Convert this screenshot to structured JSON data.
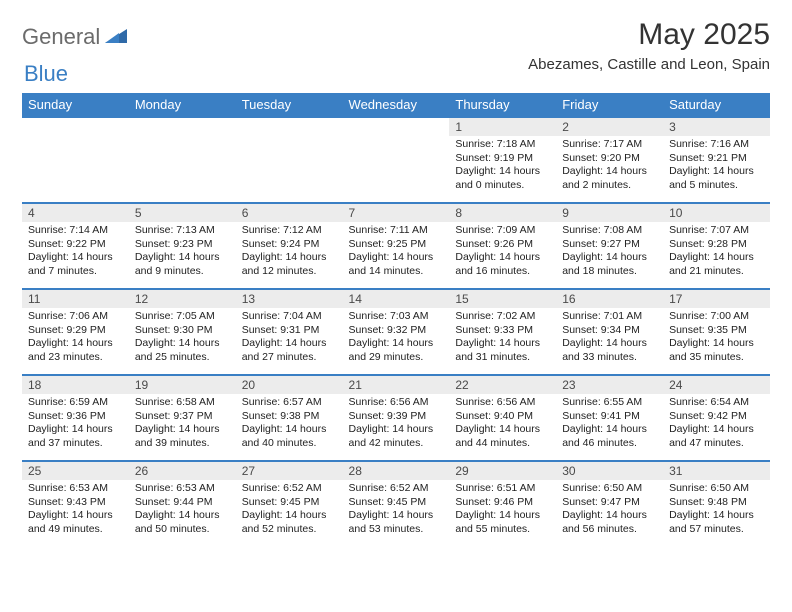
{
  "brand": {
    "part1": "General",
    "part2": "Blue"
  },
  "title": "May 2025",
  "location": "Abezames, Castille and Leon, Spain",
  "day_headers": [
    "Sunday",
    "Monday",
    "Tuesday",
    "Wednesday",
    "Thursday",
    "Friday",
    "Saturday"
  ],
  "colors": {
    "header_bg": "#3a7fc4",
    "header_text": "#ffffff",
    "daynum_bg": "#ececec",
    "border": "#3a7fc4",
    "logo_gray": "#6b6b6b",
    "logo_blue": "#3a7fc4"
  },
  "weeks": [
    [
      null,
      null,
      null,
      null,
      {
        "n": "1",
        "sr": "Sunrise: 7:18 AM",
        "ss": "Sunset: 9:19 PM",
        "dl1": "Daylight: 14 hours",
        "dl2": "and 0 minutes."
      },
      {
        "n": "2",
        "sr": "Sunrise: 7:17 AM",
        "ss": "Sunset: 9:20 PM",
        "dl1": "Daylight: 14 hours",
        "dl2": "and 2 minutes."
      },
      {
        "n": "3",
        "sr": "Sunrise: 7:16 AM",
        "ss": "Sunset: 9:21 PM",
        "dl1": "Daylight: 14 hours",
        "dl2": "and 5 minutes."
      }
    ],
    [
      {
        "n": "4",
        "sr": "Sunrise: 7:14 AM",
        "ss": "Sunset: 9:22 PM",
        "dl1": "Daylight: 14 hours",
        "dl2": "and 7 minutes."
      },
      {
        "n": "5",
        "sr": "Sunrise: 7:13 AM",
        "ss": "Sunset: 9:23 PM",
        "dl1": "Daylight: 14 hours",
        "dl2": "and 9 minutes."
      },
      {
        "n": "6",
        "sr": "Sunrise: 7:12 AM",
        "ss": "Sunset: 9:24 PM",
        "dl1": "Daylight: 14 hours",
        "dl2": "and 12 minutes."
      },
      {
        "n": "7",
        "sr": "Sunrise: 7:11 AM",
        "ss": "Sunset: 9:25 PM",
        "dl1": "Daylight: 14 hours",
        "dl2": "and 14 minutes."
      },
      {
        "n": "8",
        "sr": "Sunrise: 7:09 AM",
        "ss": "Sunset: 9:26 PM",
        "dl1": "Daylight: 14 hours",
        "dl2": "and 16 minutes."
      },
      {
        "n": "9",
        "sr": "Sunrise: 7:08 AM",
        "ss": "Sunset: 9:27 PM",
        "dl1": "Daylight: 14 hours",
        "dl2": "and 18 minutes."
      },
      {
        "n": "10",
        "sr": "Sunrise: 7:07 AM",
        "ss": "Sunset: 9:28 PM",
        "dl1": "Daylight: 14 hours",
        "dl2": "and 21 minutes."
      }
    ],
    [
      {
        "n": "11",
        "sr": "Sunrise: 7:06 AM",
        "ss": "Sunset: 9:29 PM",
        "dl1": "Daylight: 14 hours",
        "dl2": "and 23 minutes."
      },
      {
        "n": "12",
        "sr": "Sunrise: 7:05 AM",
        "ss": "Sunset: 9:30 PM",
        "dl1": "Daylight: 14 hours",
        "dl2": "and 25 minutes."
      },
      {
        "n": "13",
        "sr": "Sunrise: 7:04 AM",
        "ss": "Sunset: 9:31 PM",
        "dl1": "Daylight: 14 hours",
        "dl2": "and 27 minutes."
      },
      {
        "n": "14",
        "sr": "Sunrise: 7:03 AM",
        "ss": "Sunset: 9:32 PM",
        "dl1": "Daylight: 14 hours",
        "dl2": "and 29 minutes."
      },
      {
        "n": "15",
        "sr": "Sunrise: 7:02 AM",
        "ss": "Sunset: 9:33 PM",
        "dl1": "Daylight: 14 hours",
        "dl2": "and 31 minutes."
      },
      {
        "n": "16",
        "sr": "Sunrise: 7:01 AM",
        "ss": "Sunset: 9:34 PM",
        "dl1": "Daylight: 14 hours",
        "dl2": "and 33 minutes."
      },
      {
        "n": "17",
        "sr": "Sunrise: 7:00 AM",
        "ss": "Sunset: 9:35 PM",
        "dl1": "Daylight: 14 hours",
        "dl2": "and 35 minutes."
      }
    ],
    [
      {
        "n": "18",
        "sr": "Sunrise: 6:59 AM",
        "ss": "Sunset: 9:36 PM",
        "dl1": "Daylight: 14 hours",
        "dl2": "and 37 minutes."
      },
      {
        "n": "19",
        "sr": "Sunrise: 6:58 AM",
        "ss": "Sunset: 9:37 PM",
        "dl1": "Daylight: 14 hours",
        "dl2": "and 39 minutes."
      },
      {
        "n": "20",
        "sr": "Sunrise: 6:57 AM",
        "ss": "Sunset: 9:38 PM",
        "dl1": "Daylight: 14 hours",
        "dl2": "and 40 minutes."
      },
      {
        "n": "21",
        "sr": "Sunrise: 6:56 AM",
        "ss": "Sunset: 9:39 PM",
        "dl1": "Daylight: 14 hours",
        "dl2": "and 42 minutes."
      },
      {
        "n": "22",
        "sr": "Sunrise: 6:56 AM",
        "ss": "Sunset: 9:40 PM",
        "dl1": "Daylight: 14 hours",
        "dl2": "and 44 minutes."
      },
      {
        "n": "23",
        "sr": "Sunrise: 6:55 AM",
        "ss": "Sunset: 9:41 PM",
        "dl1": "Daylight: 14 hours",
        "dl2": "and 46 minutes."
      },
      {
        "n": "24",
        "sr": "Sunrise: 6:54 AM",
        "ss": "Sunset: 9:42 PM",
        "dl1": "Daylight: 14 hours",
        "dl2": "and 47 minutes."
      }
    ],
    [
      {
        "n": "25",
        "sr": "Sunrise: 6:53 AM",
        "ss": "Sunset: 9:43 PM",
        "dl1": "Daylight: 14 hours",
        "dl2": "and 49 minutes."
      },
      {
        "n": "26",
        "sr": "Sunrise: 6:53 AM",
        "ss": "Sunset: 9:44 PM",
        "dl1": "Daylight: 14 hours",
        "dl2": "and 50 minutes."
      },
      {
        "n": "27",
        "sr": "Sunrise: 6:52 AM",
        "ss": "Sunset: 9:45 PM",
        "dl1": "Daylight: 14 hours",
        "dl2": "and 52 minutes."
      },
      {
        "n": "28",
        "sr": "Sunrise: 6:52 AM",
        "ss": "Sunset: 9:45 PM",
        "dl1": "Daylight: 14 hours",
        "dl2": "and 53 minutes."
      },
      {
        "n": "29",
        "sr": "Sunrise: 6:51 AM",
        "ss": "Sunset: 9:46 PM",
        "dl1": "Daylight: 14 hours",
        "dl2": "and 55 minutes."
      },
      {
        "n": "30",
        "sr": "Sunrise: 6:50 AM",
        "ss": "Sunset: 9:47 PM",
        "dl1": "Daylight: 14 hours",
        "dl2": "and 56 minutes."
      },
      {
        "n": "31",
        "sr": "Sunrise: 6:50 AM",
        "ss": "Sunset: 9:48 PM",
        "dl1": "Daylight: 14 hours",
        "dl2": "and 57 minutes."
      }
    ]
  ]
}
